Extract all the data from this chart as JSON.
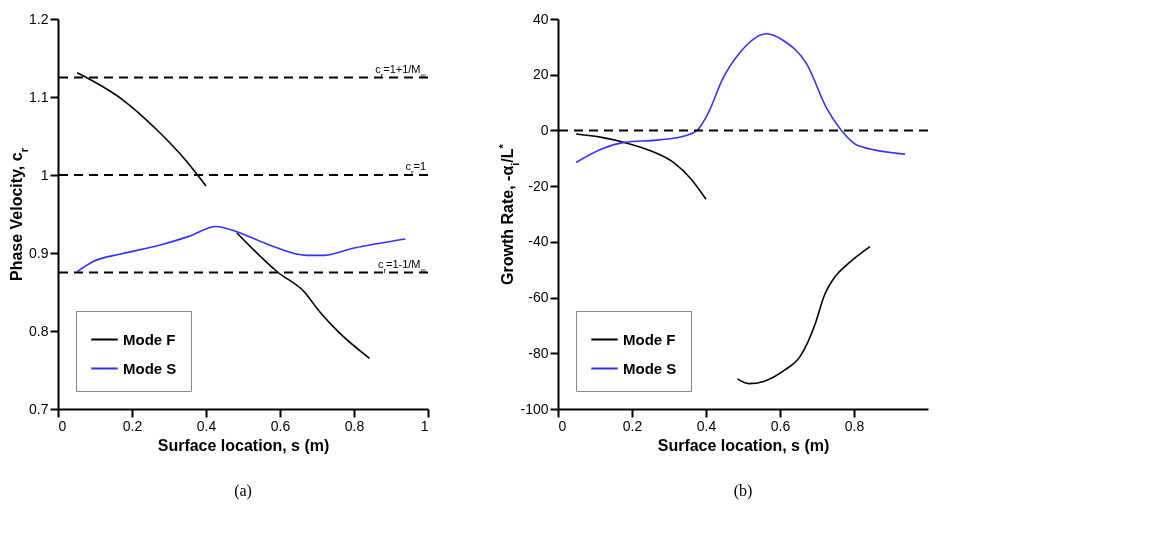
{
  "chart_data": [
    {
      "type": "line",
      "xlabel": "Surface location, s (m)",
      "ylabel": "Phase Velocity, c$_{r}$",
      "annotations": [
        "(a)"
      ],
      "xlim": [
        0,
        1
      ],
      "xticks": [
        0,
        0.2,
        0.4,
        0.6,
        0.8,
        1
      ],
      "ylim": [
        0.7,
        1.2
      ],
      "yticks": [
        0.7,
        0.8,
        0.9,
        1,
        1.1,
        1.2
      ],
      "legend": "bottom left",
      "series": [
        {
          "name": "Mode F",
          "color": "#000000",
          "x": [
            0.052,
            0.173,
            0.267,
            0.345,
            0.4,
            0.44,
            0.483,
            0.595,
            0.666,
            0.705,
            0.76,
            0.842
          ],
          "values": [
            1.131,
            1.097,
            1.058,
            1.019,
            0.986,
            null,
            0.926,
            0.875,
            0.85,
            0.826,
            0.798,
            0.765
          ]
        },
        {
          "name": "Mode S",
          "color": "#3333ff",
          "x": [
            0.052,
            0.095,
            0.173,
            0.274,
            0.352,
            0.427,
            0.485,
            0.563,
            0.673,
            0.719,
            0.797,
            0.939
          ],
          "values": [
            0.876,
            0.889,
            0.899,
            0.91,
            0.921,
            0.934,
            0.927,
            0.912,
            0.897,
            0.897,
            0.906,
            0.918
          ]
        }
      ],
      "ref_lines": [
        {
          "axis": "y",
          "value": 1.125,
          "label": "c$_{r}$=1+1/M$_{∞}$",
          "color": "#000000",
          "line_style": "dashed"
        },
        {
          "axis": "y",
          "value": 1,
          "label": "c$_{r}$=1",
          "color": "#000000",
          "line_style": "dashed"
        },
        {
          "axis": "y",
          "value": 0.875,
          "label": "c$_{r}$=1-1/M$_{∞}$",
          "color": "#000000",
          "line_style": "dashed"
        }
      ]
    },
    {
      "type": "line",
      "xlabel": "Surface location, s (m)",
      "ylabel": "Growth Rate, -α$_{i}$/L$^{*}$",
      "annotations": [
        "(b)"
      ],
      "xlim": [
        0,
        1
      ],
      "xticks": [
        0,
        0.2,
        0.4,
        0.6,
        0.8
      ],
      "ylim": [
        -100,
        40
      ],
      "yticks": [
        -100,
        -80,
        -60,
        -40,
        -20,
        0,
        20,
        40
      ],
      "legend": "bottom left",
      "series": [
        {
          "name": "Mode F",
          "color": "#000000",
          "x": [
            0.049,
            0.118,
            0.179,
            0.25,
            0.312,
            0.36,
            0.4,
            0.44,
            0.485,
            0.516,
            0.556,
            0.614,
            0.654,
            0.696,
            0.719,
            0.75,
            0.782,
            0.843
          ],
          "values": [
            -1.3,
            -2.5,
            -4.3,
            -7.3,
            -11.5,
            -17.5,
            -24.7,
            null,
            -89.2,
            -90.9,
            -90.1,
            -85.9,
            -81.2,
            -69.1,
            -59.5,
            -52.3,
            -48.1,
            -41.7
          ]
        },
        {
          "name": "Mode S",
          "color": "#3333ff",
          "x": [
            0.049,
            0.118,
            0.179,
            0.274,
            0.344,
            0.376,
            0.407,
            0.445,
            0.492,
            0.563,
            0.61,
            0.672,
            0.727,
            0.766,
            0.812,
            0.938
          ],
          "values": [
            -11.5,
            -6.7,
            -4.3,
            -3.4,
            -1.9,
            0,
            6.5,
            18.5,
            28,
            34.7,
            32.2,
            23.9,
            7.7,
            0,
            -5.5,
            -8.5
          ]
        }
      ],
      "ref_lines": [
        {
          "axis": "y",
          "value": 0,
          "color": "#000000",
          "line_style": "dashed"
        }
      ]
    }
  ]
}
